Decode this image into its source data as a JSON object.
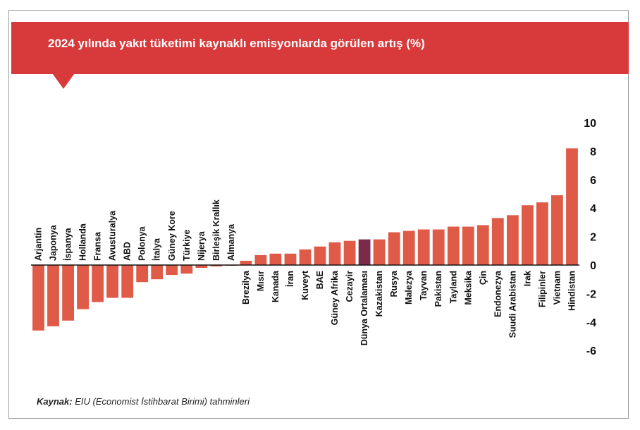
{
  "title": "2024 yılında yakıt tüketimi kaynaklı emisyonlarda görülen artış (%)",
  "source": {
    "label": "Kaynak:",
    "text": " EIU (Economist İstihbarat Birimi) tahminleri"
  },
  "colors": {
    "banner": "#d8393b",
    "bar": "#e05a48",
    "highlight": "#7b2a4a",
    "axis": "#111111"
  },
  "chart_data": {
    "type": "bar",
    "title": "2024 yılında yakıt tüketimi kaynaklı emisyonlarda görülen artış (%)",
    "xlabel": "",
    "ylabel": "",
    "ylim": [
      -6,
      10
    ],
    "yticks": [
      10,
      8,
      6,
      4,
      2,
      0,
      -2,
      -4,
      -6
    ],
    "y_axis_position": "right",
    "grid": false,
    "highlight_category": "Dünya Ortalaması",
    "categories": [
      "Arjantin",
      "Japonya",
      "İspanya",
      "Hollanda",
      "Fransa",
      "Avusturalya",
      "ABD",
      "Polonya",
      "İtalya",
      "Güney Kore",
      "Türkiye",
      "Nijerya",
      "Birleşik Krallık",
      "Almanya",
      "Brezilya",
      "Mısır",
      "Kanada",
      "İran",
      "Kuveyt",
      "BAE",
      "Güney Afrika",
      "Cezayir",
      "Dünya Ortalaması",
      "Kazakistan",
      "Rusya",
      "Malezya",
      "Tayvan",
      "Pakistan",
      "Tayland",
      "Meksika",
      "Çin",
      "Endonezya",
      "Suudi Arabistan",
      "Irak",
      "Filipinler",
      "Vietnam",
      "Hindistan"
    ],
    "values": [
      -4.6,
      -4.3,
      -3.9,
      -3.1,
      -2.6,
      -2.3,
      -2.3,
      -1.2,
      -1.0,
      -0.7,
      -0.6,
      -0.2,
      -0.1,
      -0.05,
      0.3,
      0.7,
      0.8,
      0.8,
      1.1,
      1.3,
      1.6,
      1.7,
      1.8,
      1.8,
      2.3,
      2.4,
      2.5,
      2.5,
      2.7,
      2.7,
      2.8,
      3.3,
      3.5,
      4.2,
      4.4,
      4.9,
      8.2
    ]
  }
}
